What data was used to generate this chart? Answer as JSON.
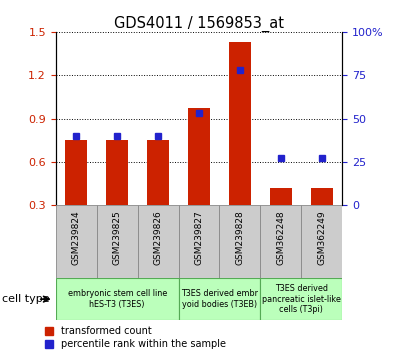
{
  "title": "GDS4011 / 1569853_at",
  "samples": [
    "GSM239824",
    "GSM239825",
    "GSM239826",
    "GSM239827",
    "GSM239828",
    "GSM362248",
    "GSM362249"
  ],
  "transformed_count": [
    0.75,
    0.75,
    0.75,
    0.97,
    1.43,
    0.42,
    0.42
  ],
  "percentile_rank": [
    40,
    40,
    40,
    53,
    78,
    27,
    27
  ],
  "ylim_left": [
    0.3,
    1.5
  ],
  "ylim_right": [
    0,
    100
  ],
  "yticks_left": [
    0.3,
    0.6,
    0.9,
    1.2,
    1.5
  ],
  "yticks_right": [
    0,
    25,
    50,
    75,
    100
  ],
  "ytick_labels_right": [
    "0",
    "25",
    "50",
    "75",
    "100%"
  ],
  "bar_color": "#cc2200",
  "marker_color": "#2222cc",
  "bar_width": 0.55,
  "background_color": "#ffffff",
  "cell_types": [
    {
      "label": "embryonic stem cell line\nhES-T3 (T3ES)",
      "start": 0,
      "end": 3
    },
    {
      "label": "T3ES derived embr\nyoid bodies (T3EB)",
      "start": 3,
      "end": 5
    },
    {
      "label": "T3ES derived\npancreatic islet-like\ncells (T3pi)",
      "start": 5,
      "end": 7
    }
  ],
  "cell_type_color": "#bbffbb",
  "cell_type_edge": "#55aa55",
  "sample_box_color": "#cccccc",
  "sample_box_edge": "#888888",
  "legend_labels": [
    "transformed count",
    "percentile rank within the sample"
  ],
  "cell_type_label": "cell type"
}
